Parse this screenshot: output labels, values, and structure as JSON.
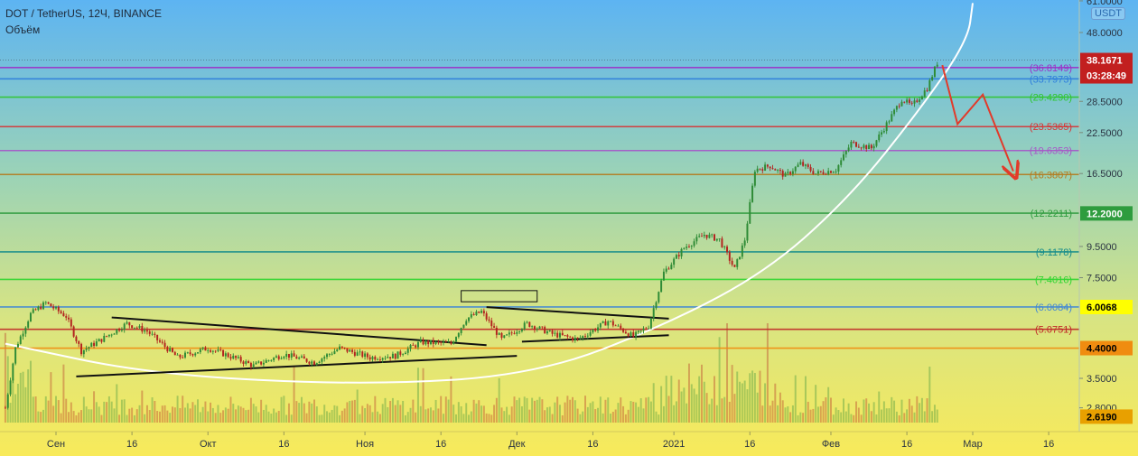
{
  "header": {
    "title": "DOT / TetherUS, 12Ч, BINANCE",
    "volume_label": "Объём",
    "currency_badge": "USDT"
  },
  "colors": {
    "bg_top": "#5db4f2",
    "bg_bottom": "#f8ea5a",
    "candle_up": "#2e8b36",
    "candle_down": "#b3231f",
    "forecast": "#e23a2a",
    "curve": "#ffffff",
    "trendline": "#111111"
  },
  "chart_data": {
    "type": "candlestick",
    "symbol": "DOT / TetherUS",
    "interval": "12Ч",
    "exchange": "BINANCE",
    "y_scale": "log",
    "ylim": [
      2.3,
      62
    ],
    "y_ticks": [
      "61.0000",
      "48.0000",
      "38.1671",
      "28.5000",
      "22.5000",
      "16.5000",
      "12.2000",
      "9.5000",
      "7.5000",
      "6.0068",
      "4.4000",
      "3.5000",
      "2.8000",
      "2.6190"
    ],
    "x_ticks": [
      "Сен",
      "16",
      "Окт",
      "16",
      "Ноя",
      "16",
      "Дек",
      "16",
      "2021",
      "16",
      "Фев",
      "16",
      "Мар",
      "16"
    ],
    "x_tick_dates": [
      "2020-09-01",
      "2020-09-16",
      "2020-10-01",
      "2020-10-16",
      "2020-11-01",
      "2020-11-16",
      "2020-12-01",
      "2020-12-16",
      "2021-01-01",
      "2021-01-16",
      "2021-02-01",
      "2021-02-16",
      "2021-03-01",
      "2021-03-16"
    ],
    "fib_levels": [
      {
        "label": "(36.8149)",
        "value": 36.8149,
        "color": "#9b30c8"
      },
      {
        "label": "(33.7973)",
        "value": 33.7973,
        "color": "#2f7fdc"
      },
      {
        "label": "(29.4290)",
        "value": 29.429,
        "color": "#2ec62e"
      },
      {
        "label": "(23.5365)",
        "value": 23.5365,
        "color": "#d93232"
      },
      {
        "label": "(19.6353)",
        "value": 19.6353,
        "color": "#a855c8"
      },
      {
        "label": "(16.3807)",
        "value": 16.3807,
        "color": "#b57a1c"
      },
      {
        "label": "(12.2211)",
        "value": 12.2211,
        "color": "#2e9c3e"
      },
      {
        "label": "(9.1178)",
        "value": 9.1178,
        "color": "#138b8b"
      },
      {
        "label": "(7.4016)",
        "value": 7.4016,
        "color": "#2fd62f"
      },
      {
        "label": "(6.0084)",
        "value": 6.0084,
        "color": "#3f86d6"
      },
      {
        "label": "(5.0751)",
        "value": 5.0751,
        "color": "#c02828"
      },
      {
        "label": "",
        "value": 4.4,
        "color": "#f08c10"
      }
    ],
    "last_price": {
      "label": "38.1671",
      "countdown": "03:28:49",
      "value": 38.1671
    },
    "price_badges": [
      {
        "label": "12.2000",
        "value": 12.2,
        "bg": "#2e9c3e",
        "fg": "#ffffff"
      },
      {
        "label": "6.0068",
        "value": 6.0068,
        "bg": "#ffff00",
        "fg": "#000000"
      },
      {
        "label": "4.4000",
        "value": 4.4,
        "bg": "#f08c10",
        "fg": "#000000"
      },
      {
        "label": "2.6190",
        "value": 2.619,
        "bg": "#e8a000",
        "fg": "#000000"
      }
    ],
    "candle_path": [
      {
        "date": "2020-08-22",
        "price": 2.8
      },
      {
        "date": "2020-08-24",
        "price": 4.4
      },
      {
        "date": "2020-08-27",
        "price": 5.7
      },
      {
        "date": "2020-08-30",
        "price": 6.2
      },
      {
        "date": "2020-09-03",
        "price": 5.6
      },
      {
        "date": "2020-09-06",
        "price": 4.3
      },
      {
        "date": "2020-09-10",
        "price": 4.7
      },
      {
        "date": "2020-09-15",
        "price": 5.3
      },
      {
        "date": "2020-09-19",
        "price": 5.0
      },
      {
        "date": "2020-09-25",
        "price": 4.1
      },
      {
        "date": "2020-10-01",
        "price": 4.4
      },
      {
        "date": "2020-10-06",
        "price": 4.1
      },
      {
        "date": "2020-10-10",
        "price": 3.85
      },
      {
        "date": "2020-10-16",
        "price": 4.2
      },
      {
        "date": "2020-10-22",
        "price": 3.95
      },
      {
        "date": "2020-10-27",
        "price": 4.4
      },
      {
        "date": "2020-11-02",
        "price": 4.1
      },
      {
        "date": "2020-11-07",
        "price": 4.15
      },
      {
        "date": "2020-11-12",
        "price": 4.6
      },
      {
        "date": "2020-11-18",
        "price": 4.55
      },
      {
        "date": "2020-11-21",
        "price": 5.5
      },
      {
        "date": "2020-11-24",
        "price": 5.8
      },
      {
        "date": "2020-11-28",
        "price": 4.7
      },
      {
        "date": "2020-12-03",
        "price": 5.3
      },
      {
        "date": "2020-12-08",
        "price": 4.9
      },
      {
        "date": "2020-12-13",
        "price": 4.7
      },
      {
        "date": "2020-12-19",
        "price": 5.4
      },
      {
        "date": "2020-12-24",
        "price": 4.8
      },
      {
        "date": "2020-12-27",
        "price": 5.2
      },
      {
        "date": "2020-12-30",
        "price": 7.8
      },
      {
        "date": "2021-01-03",
        "price": 9.4
      },
      {
        "date": "2021-01-07",
        "price": 10.4
      },
      {
        "date": "2021-01-10",
        "price": 10.0
      },
      {
        "date": "2021-01-13",
        "price": 8.0
      },
      {
        "date": "2021-01-15",
        "price": 10.0
      },
      {
        "date": "2021-01-17",
        "price": 17.0
      },
      {
        "date": "2021-01-20",
        "price": 17.5
      },
      {
        "date": "2021-01-23",
        "price": 16.2
      },
      {
        "date": "2021-01-26",
        "price": 17.8
      },
      {
        "date": "2021-01-29",
        "price": 16.5
      },
      {
        "date": "2021-02-02",
        "price": 17.0
      },
      {
        "date": "2021-02-05",
        "price": 20.8
      },
      {
        "date": "2021-02-09",
        "price": 20.0
      },
      {
        "date": "2021-02-12",
        "price": 24.0
      },
      {
        "date": "2021-02-15",
        "price": 29.0
      },
      {
        "date": "2021-02-17",
        "price": 27.5
      },
      {
        "date": "2021-02-20",
        "price": 31.5
      },
      {
        "date": "2021-02-22",
        "price": 38.2
      }
    ],
    "trendlines": [
      {
        "from": {
          "date": "2020-09-12",
          "price": 5.55
        },
        "to": {
          "date": "2020-11-25",
          "price": 4.5
        }
      },
      {
        "from": {
          "date": "2020-09-05",
          "price": 3.55
        },
        "to": {
          "date": "2020-12-01",
          "price": 4.15
        }
      },
      {
        "from": {
          "date": "2020-11-25",
          "price": 6.0
        },
        "to": {
          "date": "2020-12-31",
          "price": 5.5
        }
      },
      {
        "from": {
          "date": "2020-12-02",
          "price": 4.62
        },
        "to": {
          "date": "2020-12-31",
          "price": 4.85
        }
      }
    ],
    "rectangle": {
      "from": {
        "date": "2020-11-20",
        "price": 6.25
      },
      "to": {
        "date": "2020-12-05",
        "price": 6.8
      }
    },
    "forecast_path": [
      {
        "date": "2021-02-23",
        "price": 37.5
      },
      {
        "date": "2021-02-26",
        "price": 24.0
      },
      {
        "date": "2021-03-03",
        "price": 30.0
      },
      {
        "date": "2021-03-09",
        "price": 16.8
      }
    ],
    "parabolic_curve": [
      {
        "date": "2020-08-22",
        "price": 4.55
      },
      {
        "date": "2020-09-20",
        "price": 3.6
      },
      {
        "date": "2020-11-01",
        "price": 3.32
      },
      {
        "date": "2020-12-05",
        "price": 3.6
      },
      {
        "date": "2020-12-31",
        "price": 5.3
      },
      {
        "date": "2021-01-20",
        "price": 8.0
      },
      {
        "date": "2021-02-05",
        "price": 14.0
      },
      {
        "date": "2021-02-18",
        "price": 26.0
      },
      {
        "date": "2021-02-28",
        "price": 45.0
      },
      {
        "date": "2021-03-01",
        "price": 60.0
      }
    ]
  }
}
